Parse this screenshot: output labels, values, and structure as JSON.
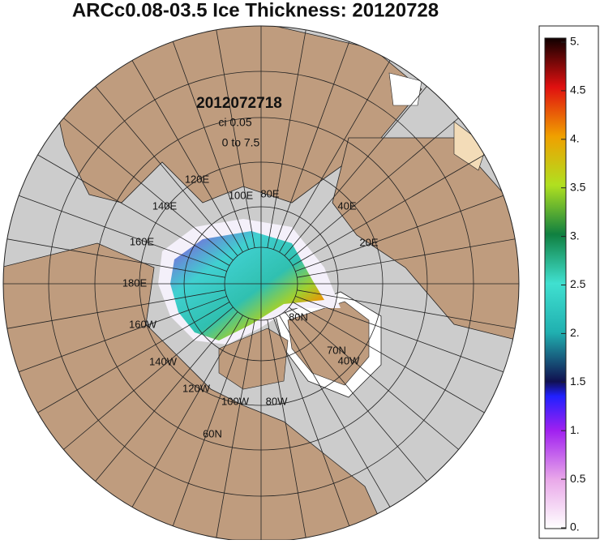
{
  "title": "ARCc0.08-03.5 Ice Thickness: 20120728",
  "map": {
    "stamp": "2012072718",
    "contour_interval": "ci 0.05",
    "range_note": "0 to 7.5",
    "labels": [
      "120E",
      "140E",
      "160E",
      "180E",
      "160W",
      "140W",
      "120W",
      "100W",
      "80W",
      "100E",
      "80E",
      "40E",
      "20E",
      "80N",
      "70N",
      "40W",
      "60N"
    ]
  },
  "colorbar": {
    "range": [
      0,
      5
    ],
    "ticks": [
      {
        "value": 5,
        "label": "5."
      },
      {
        "value": 4.5,
        "label": "4.5"
      },
      {
        "value": 4,
        "label": "4."
      },
      {
        "value": 3.5,
        "label": "3.5"
      },
      {
        "value": 3,
        "label": "3."
      },
      {
        "value": 2.5,
        "label": "2.5"
      },
      {
        "value": 2,
        "label": "2."
      },
      {
        "value": 1.5,
        "label": "1.5"
      },
      {
        "value": 1,
        "label": "1."
      },
      {
        "value": 0.5,
        "label": "0.5"
      },
      {
        "value": 0,
        "label": "0."
      }
    ]
  }
}
